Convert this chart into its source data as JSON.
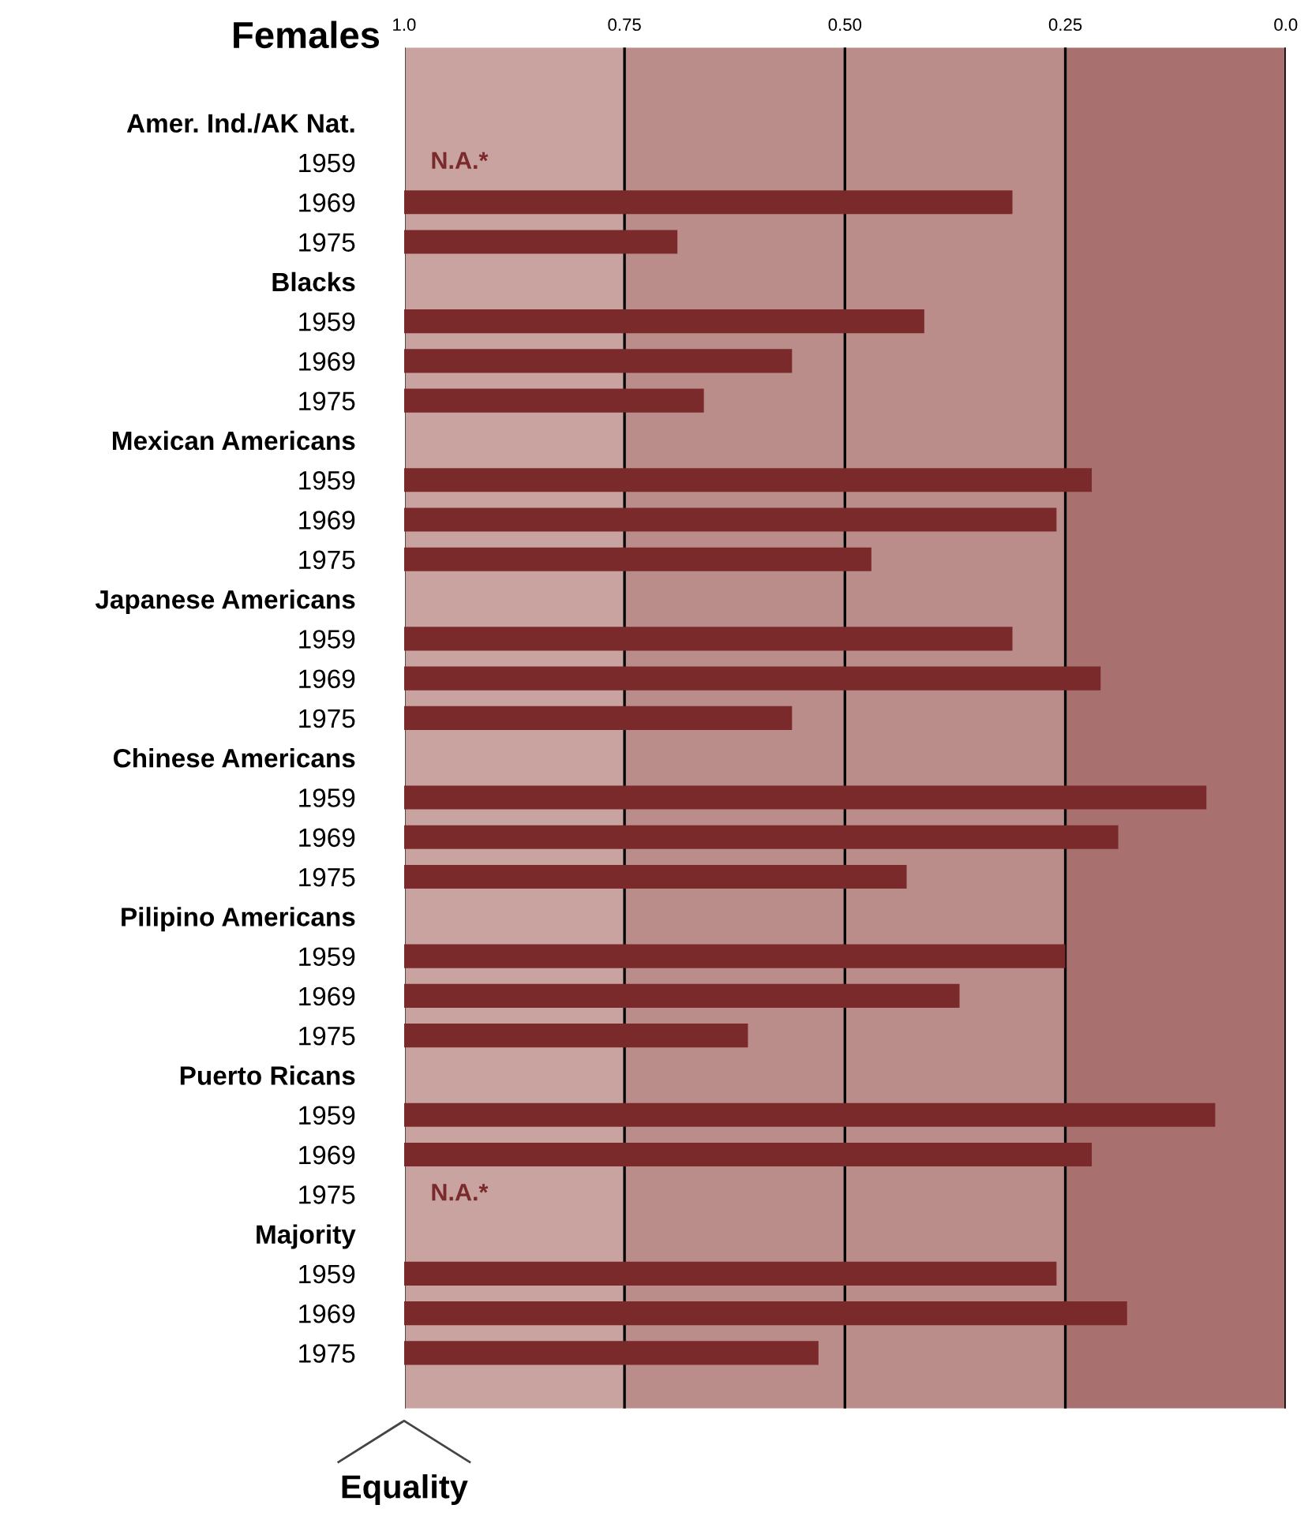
{
  "chart_data": {
    "type": "bar",
    "orientation": "horizontal",
    "title": "Females",
    "categories": [
      "Amer. Ind./AK Nat.",
      "1959",
      "1969",
      "1975",
      "Blacks",
      "1959",
      "1969",
      "1975",
      "Mexican Americans",
      "1959",
      "1969",
      "1975",
      "Japanese Americans",
      "1959",
      "1969",
      "1975",
      "Chinese Americans",
      "1959",
      "1969",
      "1975",
      "Pilipino Americans",
      "1959",
      "1969",
      "1975",
      "Puerto Ricans",
      "1959",
      "1969",
      "1975",
      "Majority",
      "1959",
      "1969",
      "1975"
    ],
    "base": [
      null,
      null,
      1.0,
      1.0,
      null,
      1.0,
      1.0,
      1.0,
      null,
      1.0,
      1.0,
      1.0,
      null,
      1.0,
      1.0,
      1.0,
      null,
      1.0,
      1.0,
      1.0,
      null,
      1.0,
      1.0,
      1.0,
      null,
      1.0,
      1.0,
      null,
      null,
      1.0,
      1.0,
      1.0
    ],
    "values": [
      null,
      null,
      -0.69,
      -0.31,
      null,
      -0.59,
      -0.44,
      -0.34,
      null,
      -0.78,
      -0.74,
      -0.53,
      null,
      -0.69,
      -0.79,
      -0.44,
      null,
      -0.91,
      -0.81,
      -0.57,
      null,
      -0.75,
      -0.63,
      -0.39,
      null,
      -0.92,
      -0.78,
      null,
      null,
      -0.74,
      -0.82,
      -0.47
    ],
    "value_labels": [
      null,
      "N.A.*",
      null,
      null,
      null,
      null,
      null,
      null,
      null,
      null,
      null,
      null,
      null,
      null,
      null,
      null,
      null,
      null,
      null,
      null,
      null,
      null,
      null,
      null,
      null,
      null,
      null,
      "N.A.*",
      null,
      null,
      null,
      null
    ],
    "color": "#7a2a2a",
    "xlim": [
      1.0,
      0.0
    ],
    "xticks": [
      {
        "value": 1.0,
        "label": "1.0"
      },
      {
        "value": 0.75,
        "label": "0.75"
      },
      {
        "value": 0.5,
        "label": "0.50"
      },
      {
        "value": 0.25,
        "label": "0.25"
      },
      {
        "value": 0.0,
        "label": "0.0"
      }
    ],
    "grid": "x",
    "bands": [
      {
        "axis": "x",
        "from": 1.0,
        "to": 0.75,
        "color": "#c9a3a0"
      },
      {
        "axis": "x",
        "from": 0.75,
        "to": 0.25,
        "color": "#bb8d8a"
      },
      {
        "axis": "x",
        "from": 0.25,
        "to": 0.0,
        "color": "#a8716f"
      }
    ],
    "annotations": [
      "Equality"
    ]
  }
}
